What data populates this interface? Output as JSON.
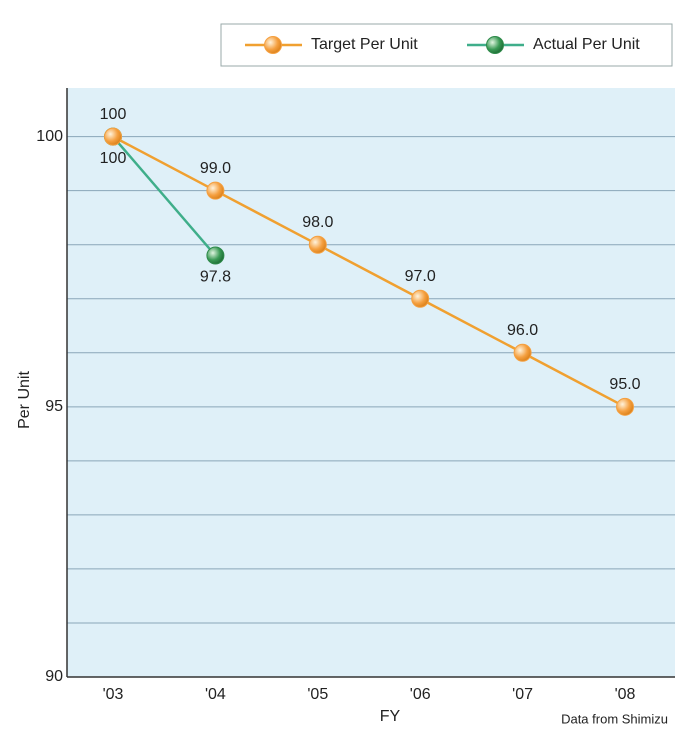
{
  "chart_data": {
    "type": "line",
    "x_label": "FY",
    "y_label": "Per Unit",
    "source": "Data from Shimizu",
    "categories": [
      "'03",
      "'04",
      "'05",
      "'06",
      "'07",
      "'08"
    ],
    "series": [
      {
        "name": "Target Per Unit",
        "color": "#f0a030",
        "marker_color": "#f5a040",
        "values": [
          100,
          99.0,
          98.0,
          97.0,
          96.0,
          95.0
        ],
        "value_labels": [
          "100",
          "99.0",
          "98.0",
          "97.0",
          "96.0",
          "95.0"
        ]
      },
      {
        "name": "Actual Per Unit",
        "color": "#3fae8a",
        "marker_color": "#2e8a4a",
        "values": [
          100,
          97.8,
          null,
          null,
          null,
          null
        ],
        "value_labels": [
          "100",
          "97.8",
          null,
          null,
          null,
          null
        ]
      }
    ],
    "ylim": [
      90,
      100.9
    ],
    "yticks": [
      90,
      95,
      100
    ],
    "minor_yticks": [
      91,
      92,
      93,
      94,
      96,
      97,
      98,
      99
    ],
    "grid": true,
    "legend": "top-right"
  }
}
